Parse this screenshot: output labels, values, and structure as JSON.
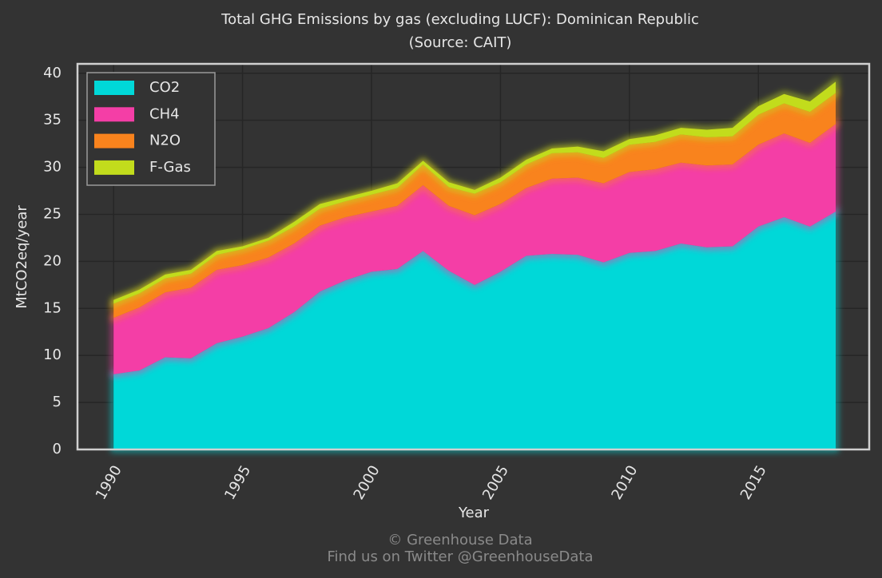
{
  "chart_data": {
    "type": "stacked_area",
    "title": "Total GHG Emissions by gas (excluding LUCF): Dominican Republic",
    "subtitle": "(Source: CAIT)",
    "x_label": "Year",
    "y_label": "MtCO2eq/year",
    "x": [
      1990,
      1991,
      1992,
      1993,
      1994,
      1995,
      1996,
      1997,
      1998,
      1999,
      2000,
      2001,
      2002,
      2003,
      2004,
      2005,
      2006,
      2007,
      2008,
      2009,
      2010,
      2011,
      2012,
      2013,
      2014,
      2015,
      2016,
      2017,
      2018
    ],
    "series": [
      {
        "name": "CO2",
        "color": "#00d8d8",
        "values": [
          8.0,
          8.4,
          9.8,
          9.7,
          11.3,
          12.0,
          12.9,
          14.6,
          16.8,
          18.0,
          18.9,
          19.2,
          21.1,
          19.0,
          17.5,
          18.9,
          20.6,
          20.8,
          20.7,
          19.9,
          20.9,
          21.1,
          21.9,
          21.5,
          21.6,
          23.7,
          24.7,
          23.7,
          25.3
        ]
      },
      {
        "name": "CH4",
        "color": "#f43ea6",
        "values": [
          6.0,
          6.7,
          6.9,
          7.5,
          7.8,
          7.6,
          7.5,
          7.3,
          7.0,
          6.7,
          6.4,
          6.7,
          7.0,
          6.9,
          7.4,
          7.2,
          7.2,
          8.0,
          8.2,
          8.4,
          8.6,
          8.7,
          8.6,
          8.7,
          8.7,
          8.7,
          8.9,
          8.9,
          9.3
        ]
      },
      {
        "name": "N2O",
        "color": "#f9831d",
        "values": [
          1.5,
          1.5,
          1.5,
          1.5,
          1.6,
          1.7,
          1.8,
          1.8,
          1.8,
          1.7,
          1.8,
          1.9,
          2.2,
          2.0,
          2.3,
          2.3,
          2.5,
          2.7,
          2.7,
          2.7,
          2.9,
          2.9,
          3.0,
          3.0,
          3.0,
          3.2,
          3.2,
          3.3,
          3.3
        ]
      },
      {
        "name": "F-Gas",
        "color": "#c2dc1c",
        "values": [
          0.4,
          0.4,
          0.4,
          0.4,
          0.4,
          0.3,
          0.3,
          0.5,
          0.5,
          0.4,
          0.4,
          0.5,
          0.4,
          0.5,
          0.4,
          0.5,
          0.5,
          0.5,
          0.6,
          0.7,
          0.6,
          0.7,
          0.7,
          0.8,
          0.9,
          0.9,
          1.0,
          1.1,
          1.2
        ]
      }
    ],
    "xlim": [
      1988.6,
      2019.3
    ],
    "ylim": [
      0,
      41
    ],
    "xticks": [
      1990,
      1995,
      2000,
      2005,
      2010,
      2015
    ],
    "yticks": [
      0,
      5,
      10,
      15,
      20,
      25,
      30,
      35,
      40
    ],
    "grid": true,
    "legend": "upper-left",
    "annotations": [
      "© Greenhouse Data",
      "Find us on Twitter @GreenhouseData"
    ]
  }
}
